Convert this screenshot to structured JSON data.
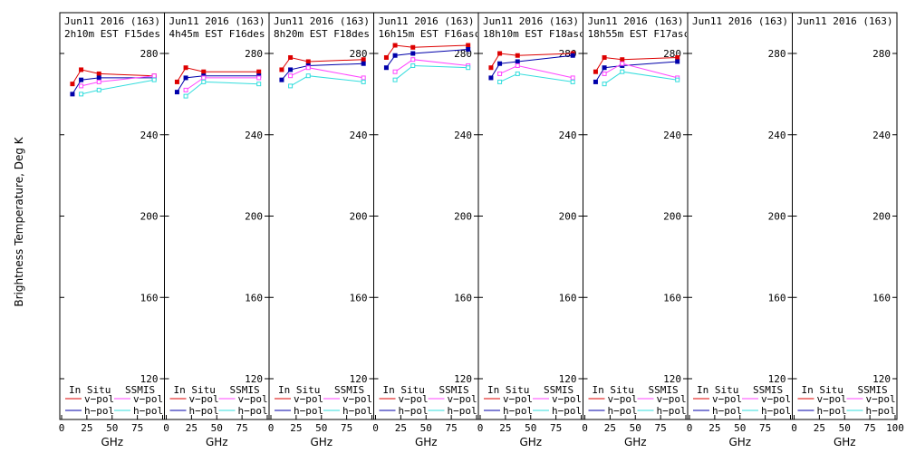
{
  "chart_data": {
    "type": "line",
    "ylabel": "Brightness Temperature, Deg K",
    "ylim": [
      110,
      294
    ],
    "yticks": [
      120,
      160,
      200,
      240,
      280
    ],
    "grid": false,
    "series_styles": [
      {
        "key": "insitu_v",
        "color": "#dd0000",
        "marker": "filled"
      },
      {
        "key": "insitu_h",
        "color": "#0000aa",
        "marker": "filled"
      },
      {
        "key": "ssmis_v",
        "color": "#ff44ff",
        "marker": "open"
      },
      {
        "key": "ssmis_h",
        "color": "#33dddd",
        "marker": "open"
      }
    ],
    "panels": [
      {
        "title1": "Jun11 2016 (163)",
        "title2": "2h10m EST F15des",
        "xlabel": "GHz",
        "xlim": [
          0,
          100
        ],
        "xticks": [
          "0",
          "25",
          "50",
          "75",
          "100"
        ],
        "legend": {
          "left_header": "In Situ",
          "right_header": "SSMIS",
          "v_label": "v−pol",
          "h_label": "h−pol"
        },
        "series": {
          "insitu_v": {
            "x": [
              10.7,
              19.35,
              37,
              91.65
            ],
            "y": [
              265,
              272,
              270,
              269
            ]
          },
          "insitu_h": {
            "x": [
              10.7,
              19.35,
              37,
              91.65
            ],
            "y": [
              260,
              267,
              268,
              268
            ]
          },
          "ssmis_v": {
            "x": [
              19.35,
              37,
              91.65
            ],
            "y": [
              264,
              266,
              269
            ]
          },
          "ssmis_h": {
            "x": [
              19.35,
              37,
              91.65
            ],
            "y": [
              260,
              262,
              267
            ]
          }
        }
      },
      {
        "title1": "Jun11 2016 (163)",
        "title2": "4h45m EST F16des",
        "xlabel": "GHz",
        "xlim": [
          0,
          100
        ],
        "xticks": [
          "0",
          "25",
          "50",
          "75",
          "100"
        ],
        "legend": {
          "left_header": "In Situ",
          "right_header": "SSMIS",
          "v_label": "v−pol",
          "h_label": "h−pol"
        },
        "series": {
          "insitu_v": {
            "x": [
              10.7,
              19.35,
              37,
              91.65
            ],
            "y": [
              266,
              273,
              271,
              271
            ]
          },
          "insitu_h": {
            "x": [
              10.7,
              19.35,
              37,
              91.65
            ],
            "y": [
              261,
              268,
              269,
              269
            ]
          },
          "ssmis_v": {
            "x": [
              19.35,
              37,
              91.65
            ],
            "y": [
              262,
              268,
              268
            ]
          },
          "ssmis_h": {
            "x": [
              19.35,
              37,
              91.65
            ],
            "y": [
              259,
              266,
              265
            ]
          }
        }
      },
      {
        "title1": "Jun11 2016 (163)",
        "title2": "8h20m EST F18des",
        "xlabel": "GHz",
        "xlim": [
          0,
          100
        ],
        "xticks": [
          "0",
          "25",
          "50",
          "75",
          "100"
        ],
        "legend": {
          "left_header": "In Situ",
          "right_header": "SSMIS",
          "v_label": "v−pol",
          "h_label": "h−pol"
        },
        "series": {
          "insitu_v": {
            "x": [
              10.7,
              19.35,
              37,
              91.65
            ],
            "y": [
              272,
              278,
              276,
              277
            ]
          },
          "insitu_h": {
            "x": [
              10.7,
              19.35,
              37,
              91.65
            ],
            "y": [
              267,
              272,
              274,
              275
            ]
          },
          "ssmis_v": {
            "x": [
              19.35,
              37,
              91.65
            ],
            "y": [
              269,
              273,
              268
            ]
          },
          "ssmis_h": {
            "x": [
              19.35,
              37,
              91.65
            ],
            "y": [
              264,
              269,
              266
            ]
          }
        }
      },
      {
        "title1": "Jun11 2016 (163)",
        "title2": "16h15m EST F16asc",
        "xlabel": "GHz",
        "xlim": [
          0,
          100
        ],
        "xticks": [
          "0",
          "25",
          "50",
          "75",
          "100"
        ],
        "legend": {
          "left_header": "In Situ",
          "right_header": "SSMIS",
          "v_label": "v−pol",
          "h_label": "h−pol"
        },
        "series": {
          "insitu_v": {
            "x": [
              10.7,
              19.35,
              37,
              91.65
            ],
            "y": [
              278,
              284,
              283,
              284
            ]
          },
          "insitu_h": {
            "x": [
              10.7,
              19.35,
              37,
              91.65
            ],
            "y": [
              273,
              279,
              280,
              282
            ]
          },
          "ssmis_v": {
            "x": [
              19.35,
              37,
              91.65
            ],
            "y": [
              271,
              277,
              274
            ]
          },
          "ssmis_h": {
            "x": [
              19.35,
              37,
              91.65
            ],
            "y": [
              267,
              274,
              273
            ]
          }
        }
      },
      {
        "title1": "Jun11 2016 (163)",
        "title2": "18h10m EST F18asc",
        "xlabel": "GHz",
        "xlim": [
          0,
          100
        ],
        "xticks": [
          "0",
          "25",
          "50",
          "75",
          "100"
        ],
        "legend": {
          "left_header": "In Situ",
          "right_header": "SSMIS",
          "v_label": "v−pol",
          "h_label": "h−pol"
        },
        "series": {
          "insitu_v": {
            "x": [
              10.7,
              19.35,
              37,
              91.65
            ],
            "y": [
              273,
              280,
              279,
              280
            ]
          },
          "insitu_h": {
            "x": [
              10.7,
              19.35,
              37,
              91.65
            ],
            "y": [
              268,
              275,
              276,
              279
            ]
          },
          "ssmis_v": {
            "x": [
              19.35,
              37,
              91.65
            ],
            "y": [
              270,
              274,
              268
            ]
          },
          "ssmis_h": {
            "x": [
              19.35,
              37,
              91.65
            ],
            "y": [
              266,
              270,
              266
            ]
          }
        }
      },
      {
        "title1": "Jun11 2016 (163)",
        "title2": "18h55m EST F17asc",
        "xlabel": "GHz",
        "xlim": [
          0,
          100
        ],
        "xticks": [
          "0",
          "25",
          "50",
          "75",
          "100"
        ],
        "legend": {
          "left_header": "In Situ",
          "right_header": "SSMIS",
          "v_label": "v−pol",
          "h_label": "h−pol"
        },
        "series": {
          "insitu_v": {
            "x": [
              10.7,
              19.35,
              37,
              91.65
            ],
            "y": [
              271,
              278,
              277,
              278
            ]
          },
          "insitu_h": {
            "x": [
              10.7,
              19.35,
              37,
              91.65
            ],
            "y": [
              266,
              273,
              274,
              276
            ]
          },
          "ssmis_v": {
            "x": [
              19.35,
              37,
              91.65
            ],
            "y": [
              270,
              275,
              268
            ]
          },
          "ssmis_h": {
            "x": [
              19.35,
              37,
              91.65
            ],
            "y": [
              265,
              271,
              267
            ]
          }
        }
      },
      {
        "title1": "Jun11 2016 (163)",
        "title2": "",
        "xlabel": "GHz",
        "xlim": [
          0,
          100
        ],
        "xticks": [
          "0",
          "25",
          "50",
          "75",
          "100"
        ],
        "legend": {
          "left_header": "In Situ",
          "right_header": "SSMIS",
          "v_label": "v−pol",
          "h_label": "h−pol"
        },
        "series": {}
      },
      {
        "title1": "Jun11 2016 (163)",
        "title2": "",
        "xlabel": "GHz",
        "xlim": [
          0,
          100
        ],
        "xticks": [
          "0",
          "25",
          "50",
          "75",
          "100"
        ],
        "legend": {
          "left_header": "In Situ",
          "right_header": "SSMIS",
          "v_label": "v−pol",
          "h_label": "h−pol"
        },
        "series": {}
      }
    ]
  }
}
